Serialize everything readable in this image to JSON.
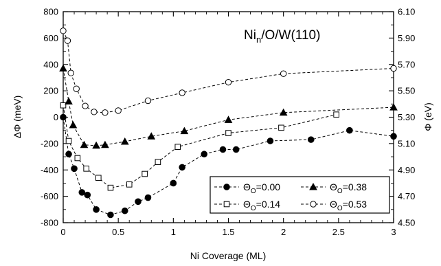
{
  "chart_data": {
    "type": "line",
    "title_main": "Ni",
    "title_sub": "n",
    "title_rest": "/O/W(110)",
    "xlabel": "Ni Coverage (ML)",
    "ylabel_left_symbol": "ΔΦ",
    "ylabel_left_unit": " (meV)",
    "ylabel_right_symbol": "Φ",
    "ylabel_right_unit": " (eV)",
    "xlim": [
      0,
      3
    ],
    "ylim_left": [
      -800,
      800
    ],
    "ylim_right": [
      4.5,
      6.1
    ],
    "x_ticks": [
      0,
      0.5,
      1,
      1.5,
      2,
      2.5,
      3
    ],
    "x_tick_labels": [
      "0",
      "0.5",
      "1",
      "1.5",
      "2",
      "2.5",
      "3"
    ],
    "y_left_ticks": [
      -800,
      -600,
      -400,
      -200,
      0,
      200,
      400,
      600,
      800
    ],
    "y_left_tick_labels": [
      "-800",
      "-600",
      "-400",
      "-200",
      "0",
      "200",
      "400",
      "600",
      "800"
    ],
    "y_right_ticks": [
      4.5,
      4.7,
      4.9,
      5.1,
      5.3,
      5.5,
      5.7,
      5.9,
      6.1
    ],
    "y_right_tick_labels": [
      "4.50",
      "4.70",
      "4.90",
      "5.10",
      "5.30",
      "5.50",
      "5.70",
      "5.90",
      "6.10"
    ],
    "grid": false,
    "legend_position": "bottom-right",
    "legend_symbol": "Θ",
    "legend_sub": "O",
    "series": [
      {
        "name": "=0.00",
        "marker": "filled-circle",
        "x": [
          0,
          0.05,
          0.1,
          0.17,
          0.22,
          0.3,
          0.43,
          0.56,
          0.68,
          0.77,
          1.0,
          1.08,
          1.28,
          1.45,
          1.57,
          1.88,
          2.25,
          2.6,
          3.0
        ],
        "y": [
          0,
          -280,
          -390,
          -570,
          -590,
          -700,
          -740,
          -710,
          -640,
          -610,
          -500,
          -380,
          -280,
          -245,
          -245,
          -180,
          -170,
          -100,
          -145
        ]
      },
      {
        "name": "=0.14",
        "marker": "open-square",
        "x": [
          0,
          0.05,
          0.13,
          0.21,
          0.32,
          0.43,
          0.6,
          0.74,
          0.86,
          1.04,
          1.5,
          1.98,
          2.48
        ],
        "y": [
          90,
          -180,
          -310,
          -390,
          -460,
          -535,
          -510,
          -430,
          -340,
          -225,
          -120,
          -80,
          20
        ]
      },
      {
        "name": "=0.38",
        "marker": "filled-triangle",
        "x": [
          0,
          0.05,
          0.09,
          0.19,
          0.3,
          0.38,
          0.56,
          0.8,
          1.1,
          1.5,
          2.0,
          3.0
        ],
        "y": [
          370,
          120,
          -60,
          -210,
          -215,
          -210,
          -185,
          -145,
          -105,
          -20,
          35,
          75
        ]
      },
      {
        "name": "=0.53",
        "marker": "open-circle",
        "x": [
          0,
          0.04,
          0.07,
          0.12,
          0.2,
          0.28,
          0.38,
          0.5,
          0.77,
          1.08,
          1.5,
          2.0,
          3.0
        ],
        "y": [
          655,
          580,
          335,
          215,
          85,
          40,
          35,
          50,
          125,
          185,
          265,
          330,
          370
        ]
      }
    ]
  }
}
